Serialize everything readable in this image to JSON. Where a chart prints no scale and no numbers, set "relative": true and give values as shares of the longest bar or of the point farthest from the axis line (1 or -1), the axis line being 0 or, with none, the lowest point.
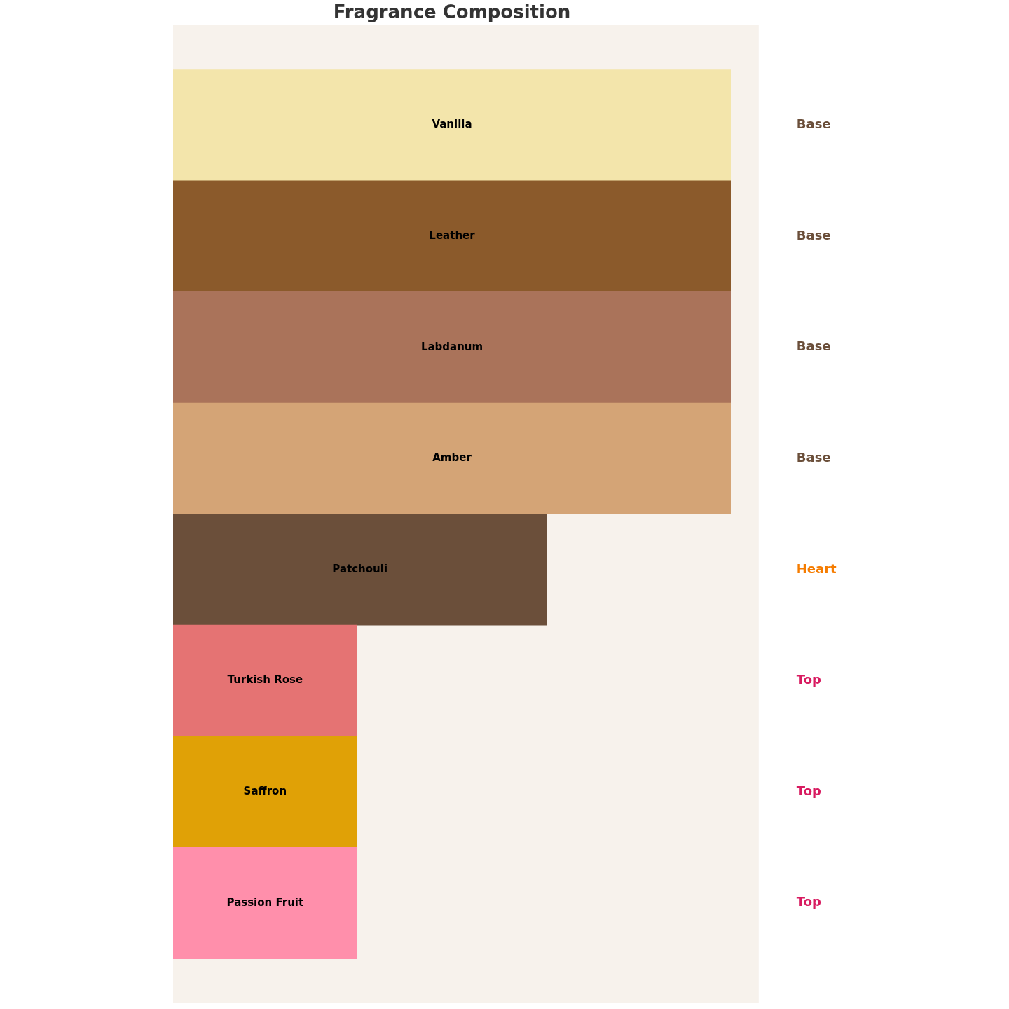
{
  "chart_data": {
    "type": "bar",
    "orientation": "horizontal",
    "relative": true,
    "title": "Fragrance Composition",
    "categories": [
      "Vanilla",
      "Leather",
      "Labdanum",
      "Amber",
      "Patchouli",
      "Turkish Rose",
      "Saffron",
      "Passion Fruit"
    ],
    "values": [
      1,
      1,
      1,
      1,
      0.67,
      0.33,
      0.33,
      0.33
    ],
    "colors": [
      "#f3e5ab",
      "#8b5a2b",
      "#aa735a",
      "#d4a476",
      "#6b4f3a",
      "#e57373",
      "#e0a106",
      "#ff8fab"
    ],
    "annotations": [
      "Base",
      "Base",
      "Base",
      "Base",
      "Heart",
      "Top",
      "Top",
      "Top"
    ]
  }
}
